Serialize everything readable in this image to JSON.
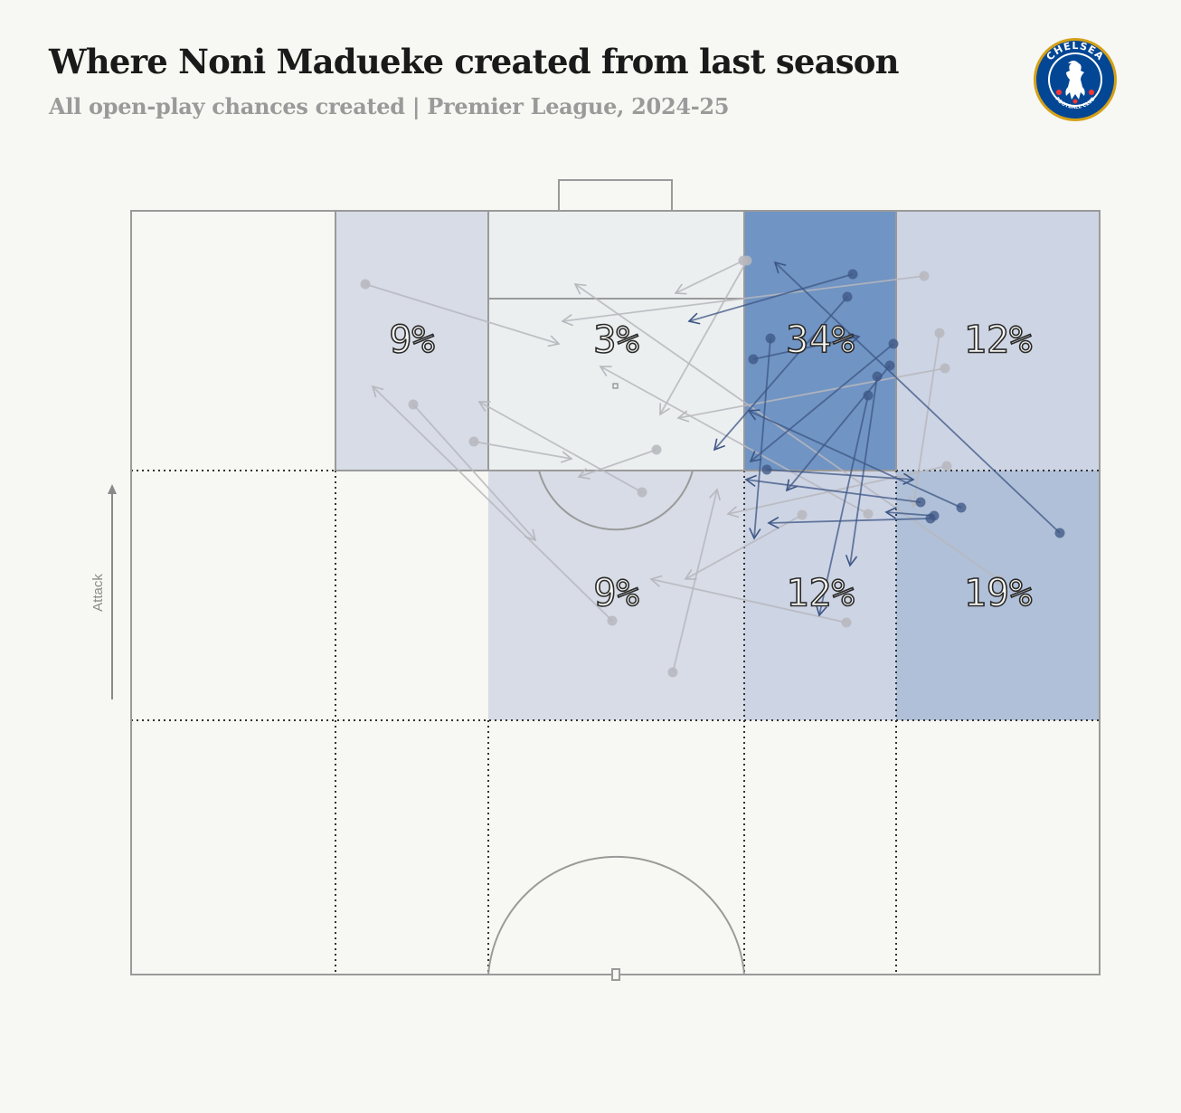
{
  "header": {
    "title": "Where Noni Madueke created from last season",
    "subtitle": "All open-play chances created | Premier League, 2024-25"
  },
  "badge": {
    "icon": "chelsea-fc-crest",
    "top_text": "CHELSEA",
    "bottom_text": "FOOTBALL CLUB",
    "primary_color": "#034694",
    "accent_color": "#d4a017"
  },
  "attack_label": "Attack",
  "colors": {
    "background": "#f7f7f3",
    "zone_scale": [
      "#eceff0",
      "#d7dce6",
      "#cdd4e4",
      "#b0c0d8",
      "#7094c3"
    ],
    "arrow_light": "#b7b7bd",
    "arrow_dark": "#3c5584"
  },
  "chart_data": {
    "type": "heatmap",
    "title": "Where Noni Madueke created from last season",
    "subtitle": "All open-play chances created | Premier League, 2024-25",
    "zones": [
      {
        "row": 0,
        "col": 1,
        "label": "9%",
        "value": 9
      },
      {
        "row": 0,
        "col": 2,
        "label": "3%",
        "value": 3
      },
      {
        "row": 0,
        "col": 3,
        "label": "34%",
        "value": 34
      },
      {
        "row": 0,
        "col": 4,
        "label": "12%",
        "value": 12
      },
      {
        "row": 1,
        "col": 2,
        "label": "9%",
        "value": 9
      },
      {
        "row": 1,
        "col": 3,
        "label": "12%",
        "value": 12
      },
      {
        "row": 1,
        "col": 4,
        "label": "19%",
        "value": 19
      }
    ],
    "passes": [
      {
        "from": [
          404,
          314
        ],
        "to": [
          618,
          380
        ],
        "dark": false
      },
      {
        "from": [
          457,
          447
        ],
        "to": [
          592,
          597
        ],
        "dark": false
      },
      {
        "from": [
          524,
          488
        ],
        "to": [
          632,
          507
        ],
        "dark": false
      },
      {
        "from": [
          710,
          544
        ],
        "to": [
          530,
          444
        ],
        "dark": false
      },
      {
        "from": [
          726,
          497
        ],
        "to": [
          640,
          527
        ],
        "dark": false
      },
      {
        "from": [
          677,
          686
        ],
        "to": [
          412,
          427
        ],
        "dark": false
      },
      {
        "from": [
          744,
          743
        ],
        "to": [
          793,
          541
        ],
        "dark": false
      },
      {
        "from": [
          822,
          288
        ],
        "to": [
          747,
          324
        ],
        "dark": false
      },
      {
        "from": [
          826,
          288
        ],
        "to": [
          730,
          458
        ],
        "dark": false
      },
      {
        "from": [
          1022,
          305
        ],
        "to": [
          622,
          355
        ],
        "dark": false
      },
      {
        "from": [
          1039,
          368
        ],
        "to": [
          1010,
          560
        ],
        "dark": false
      },
      {
        "from": [
          1045,
          407
        ],
        "to": [
          750,
          462
        ],
        "dark": false
      },
      {
        "from": [
          1047,
          515
        ],
        "to": [
          805,
          568
        ],
        "dark": false
      },
      {
        "from": [
          936,
          688
        ],
        "to": [
          720,
          640
        ],
        "dark": false
      },
      {
        "from": [
          1105,
          641
        ],
        "to": [
          636,
          314
        ],
        "dark": false
      },
      {
        "from": [
          887,
          569
        ],
        "to": [
          758,
          640
        ],
        "dark": false
      },
      {
        "from": [
          960,
          568
        ],
        "to": [
          664,
          405
        ],
        "dark": false
      },
      {
        "from": [
          943,
          303
        ],
        "to": [
          762,
          355
        ],
        "dark": true
      },
      {
        "from": [
          937,
          328
        ],
        "to": [
          790,
          497
        ],
        "dark": true
      },
      {
        "from": [
          988,
          380
        ],
        "to": [
          830,
          510
        ],
        "dark": true
      },
      {
        "from": [
          970,
          416
        ],
        "to": [
          940,
          625
        ],
        "dark": true
      },
      {
        "from": [
          984,
          404
        ],
        "to": [
          870,
          542
        ],
        "dark": true
      },
      {
        "from": [
          960,
          437
        ],
        "to": [
          906,
          680
        ],
        "dark": true
      },
      {
        "from": [
          852,
          374
        ],
        "to": [
          834,
          595
        ],
        "dark": true
      },
      {
        "from": [
          833,
          397
        ],
        "to": [
          950,
          372
        ],
        "dark": true
      },
      {
        "from": [
          848,
          519
        ],
        "to": [
          1010,
          530
        ],
        "dark": true
      },
      {
        "from": [
          1063,
          561
        ],
        "to": [
          828,
          454
        ],
        "dark": true
      },
      {
        "from": [
          1172,
          589
        ],
        "to": [
          857,
          290
        ],
        "dark": true
      },
      {
        "from": [
          1029,
          573
        ],
        "to": [
          850,
          578
        ],
        "dark": true
      },
      {
        "from": [
          1018,
          555
        ],
        "to": [
          825,
          530
        ],
        "dark": true
      },
      {
        "from": [
          1033,
          570
        ],
        "to": [
          980,
          566
        ],
        "dark": true
      }
    ]
  }
}
